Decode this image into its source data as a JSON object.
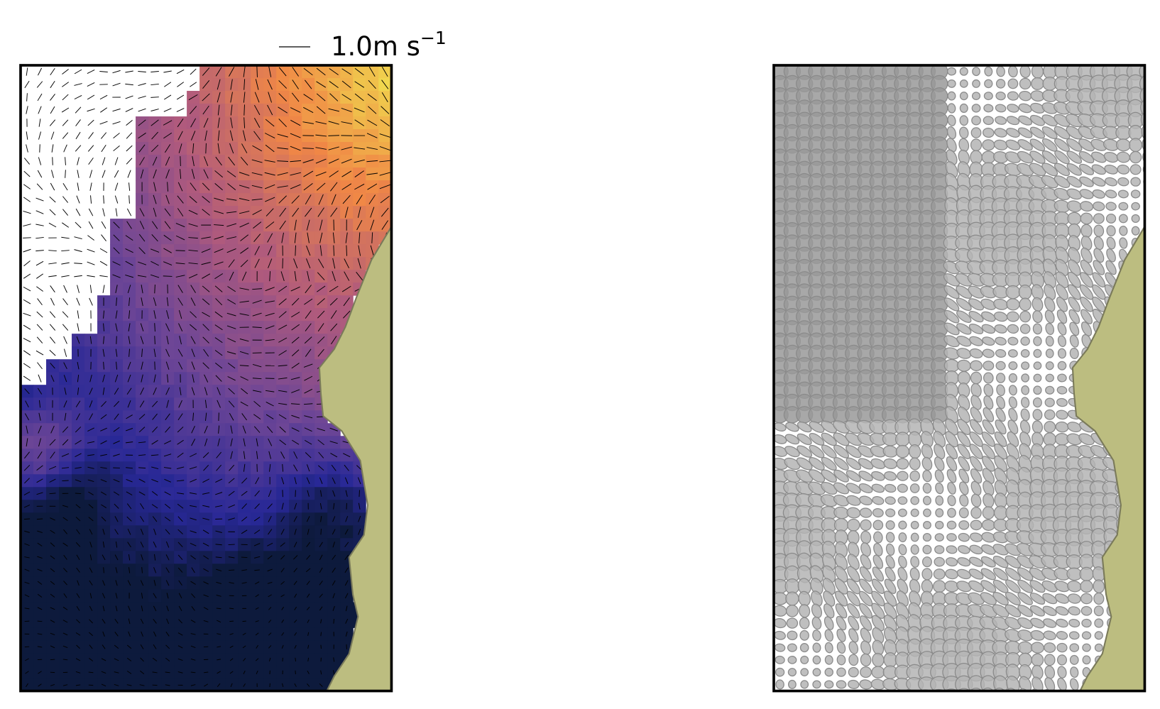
{
  "key": {
    "label": "1.0m s",
    "exponent": "−1"
  }
}
